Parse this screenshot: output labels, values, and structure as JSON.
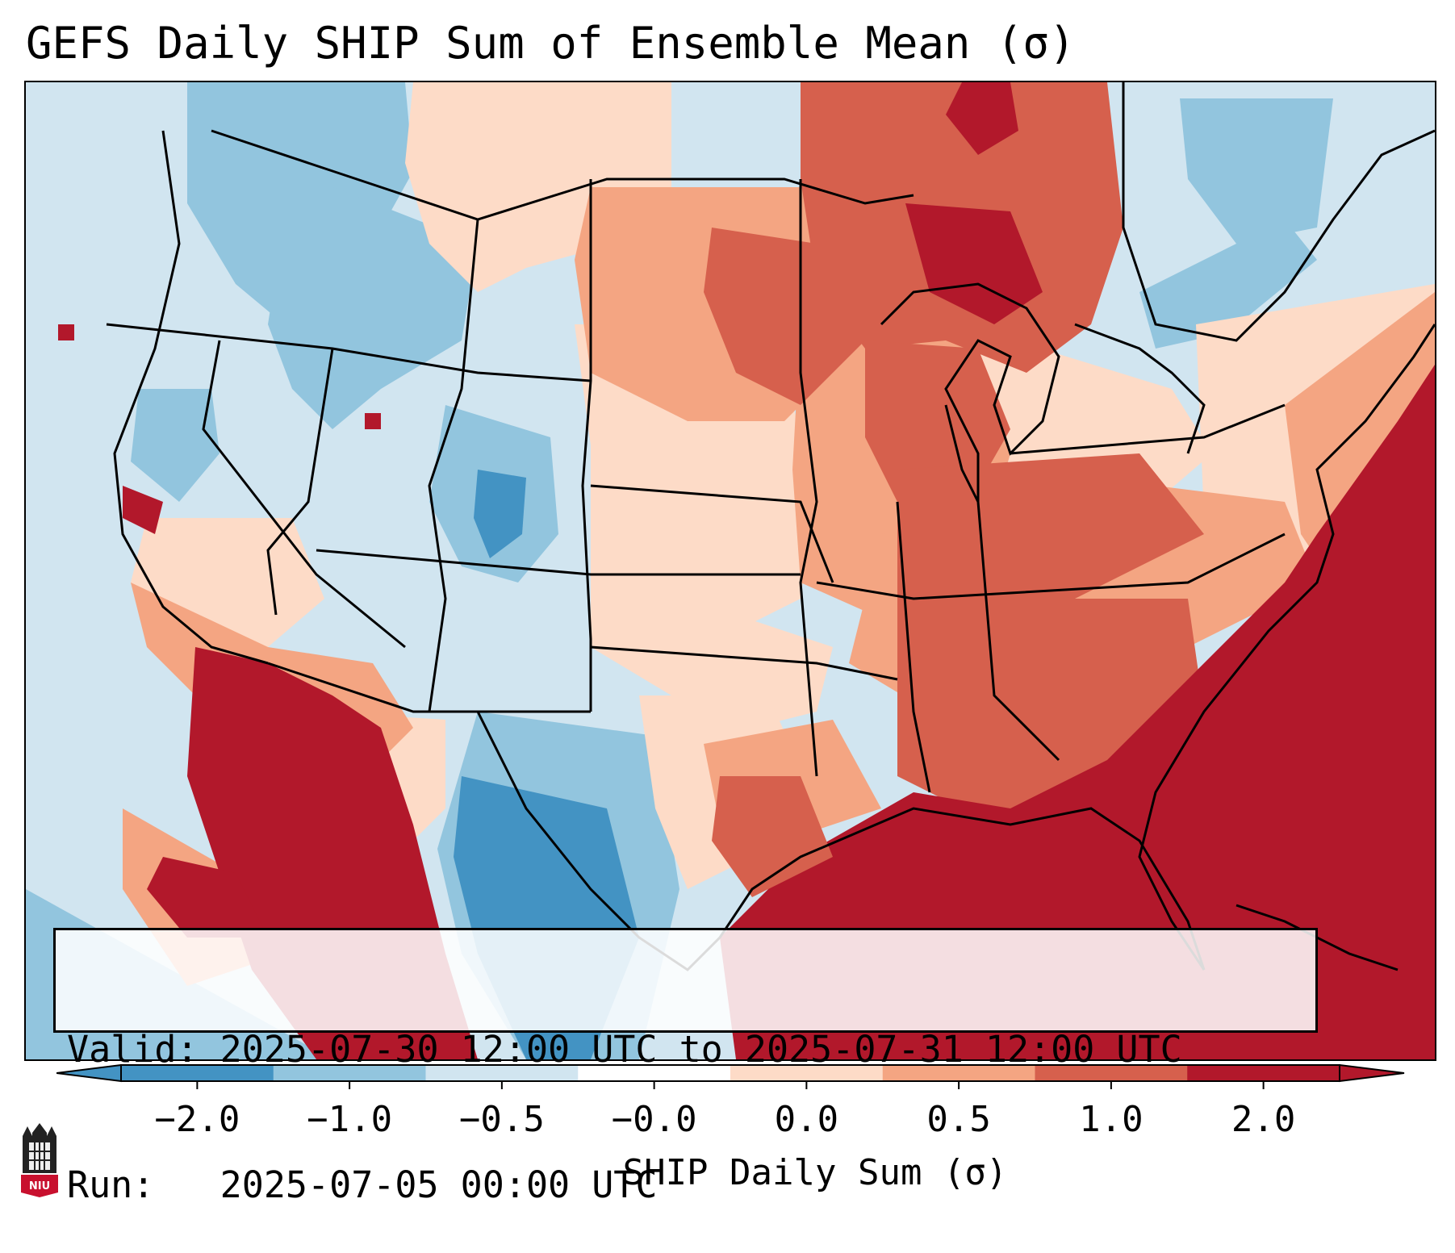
{
  "title": "GEFS Daily SHIP Sum of Ensemble Mean (σ)",
  "info": {
    "valid_line": "Valid: 2025-07-30 12:00 UTC to 2025-07-31 12:00 UTC",
    "run_line": "Run:   2025-07-05 00:00 UTC"
  },
  "colorbar": {
    "label": "SHIP Daily Sum (σ)",
    "ticks": [
      "−2.0",
      "−1.0",
      "−0.5",
      "−0.0",
      "0.0",
      "0.5",
      "1.0",
      "2.0"
    ],
    "colors": [
      "#4393c3",
      "#92c5de",
      "#d1e5f0",
      "#ffffff",
      "#fddbc7",
      "#f4a582",
      "#d6604d",
      "#b2182b"
    ],
    "extend": "both"
  },
  "logo": {
    "text": "NIU"
  },
  "map": {
    "region": "CONUS",
    "anomaly_regions": [
      {
        "area": "Pacific Northwest / Northern Rockies",
        "category": "-1.0 to -0.5"
      },
      {
        "area": "Central Rockies / Colorado",
        "category": "-2.0 to -1.0"
      },
      {
        "area": "West Texas / Northern Mexico",
        "category": "-2.0 to -1.0"
      },
      {
        "area": "Northern Plains / Upper Midwest",
        "category": "0.5 to 2.0"
      },
      {
        "area": "Southeast US / Gulf Coast",
        "category": "> 2.0"
      },
      {
        "area": "Western Atlantic",
        "category": "> 2.0"
      },
      {
        "area": "Northern Mexico / Gulf of California",
        "category": "> 2.0"
      },
      {
        "area": "Southern Quebec",
        "category": "-1.0 to -0.5"
      }
    ]
  }
}
